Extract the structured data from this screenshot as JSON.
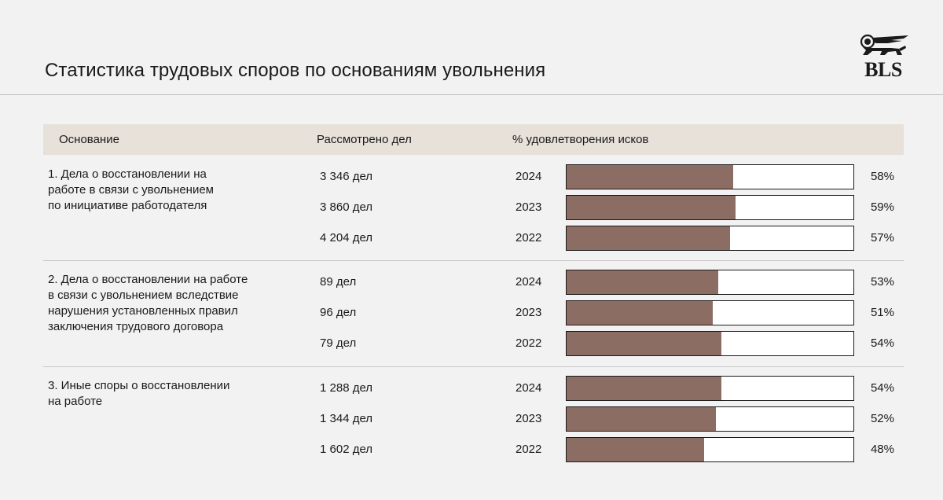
{
  "header": {
    "title": "Статистика трудовых споров по основаниям увольнения",
    "logo_text": "BLS"
  },
  "columns": {
    "basis": "Основание",
    "cases": "Рассмотрено дел",
    "satisfaction": "% удовлетворения исков"
  },
  "chart_data": {
    "type": "bar",
    "title": "Статистика трудовых споров по основаниям увольнения",
    "value_unit": "%",
    "xlim": [
      0,
      100
    ],
    "groups": [
      {
        "label": "1. Дела о восстановлении на работе в связи с увольнением по инициативе работодателя",
        "label_lines": [
          "1. Дела о восстановлении на",
          "работе в связи с увольнением",
          "по инициативе работодателя"
        ],
        "rows": [
          {
            "year": "2024",
            "cases": "3 346 дел",
            "value": 58,
            "label": "58%"
          },
          {
            "year": "2023",
            "cases": "3 860 дел",
            "value": 59,
            "label": "59%"
          },
          {
            "year": "2022",
            "cases": "4 204 дел",
            "value": 57,
            "label": "57%"
          }
        ]
      },
      {
        "label": "2. Дела о восстановлении на работе в связи с увольнением вследствие нарушения установленных правил заключения трудового договора",
        "label_lines": [
          "2. Дела о восстановлении на работе",
          "в связи с увольнением вследствие",
          "нарушения установленных правил",
          "заключения трудового договора"
        ],
        "rows": [
          {
            "year": "2024",
            "cases": "89 дел",
            "value": 53,
            "label": "53%"
          },
          {
            "year": "2023",
            "cases": "96 дел",
            "value": 51,
            "label": "51%"
          },
          {
            "year": "2022",
            "cases": "79 дел",
            "value": 54,
            "label": "54%"
          }
        ]
      },
      {
        "label": "3. Иные споры о восстановлении на работе",
        "label_lines": [
          "3. Иные споры о восстановлении",
          "на работе"
        ],
        "rows": [
          {
            "year": "2024",
            "cases": "1 288 дел",
            "value": 54,
            "label": "54%"
          },
          {
            "year": "2023",
            "cases": "1 344 дел",
            "value": 52,
            "label": "52%"
          },
          {
            "year": "2022",
            "cases": "1 602 дел",
            "value": 48,
            "label": "48%"
          }
        ]
      }
    ]
  },
  "colors": {
    "bar": "#8c6d63",
    "header_band": "#e8e1da",
    "background": "#f2f2f2"
  }
}
